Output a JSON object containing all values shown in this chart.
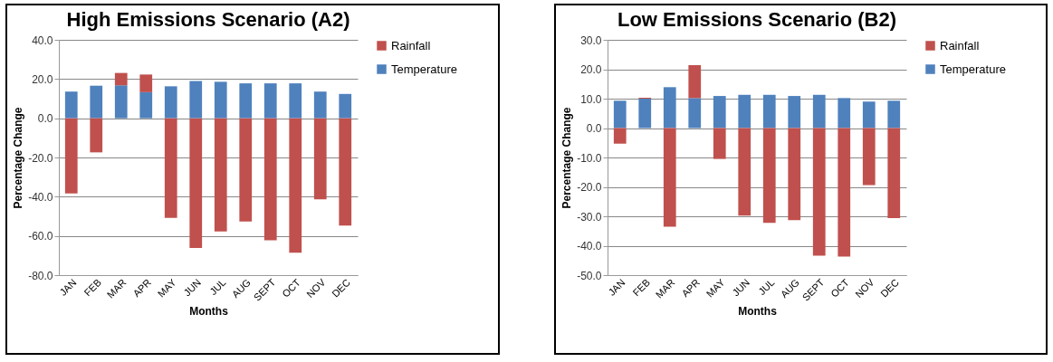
{
  "chart_data": [
    {
      "type": "bar",
      "title": "High Emissions Scenario (A2)",
      "xlabel": "Months",
      "ylabel": "Percentage Change",
      "stacked": true,
      "legend": "right",
      "grid": "y",
      "categories": [
        "JAN",
        "FEB",
        "MAR",
        "APR",
        "MAY",
        "JUN",
        "JUL",
        "AUG",
        "SEPT",
        "OCT",
        "NOV",
        "DEC"
      ],
      "ylim": [
        -80,
        40
      ],
      "yticks": [
        {
          "value": -80,
          "label": "-80.0"
        },
        {
          "value": -60,
          "label": "-60.0"
        },
        {
          "value": -40,
          "label": "-40.0"
        },
        {
          "value": -20,
          "label": "-20.0"
        },
        {
          "value": 0,
          "label": "0.0"
        },
        {
          "value": 20,
          "label": "20.0"
        },
        {
          "value": 40,
          "label": "40.0"
        }
      ],
      "series": [
        {
          "name": "Temperature",
          "color": "#4f81bd",
          "values": [
            13.6,
            16.6,
            16.8,
            13.3,
            16.3,
            19.0,
            18.6,
            17.8,
            17.8,
            17.8,
            13.6,
            12.4
          ]
        },
        {
          "name": "Rainfall",
          "color": "#c0504d",
          "values": [
            -38.4,
            -17.4,
            6.3,
            9.0,
            -50.8,
            -66.1,
            -57.7,
            -52.7,
            -62.2,
            -68.6,
            -41.3,
            -54.7
          ]
        }
      ]
    },
    {
      "type": "bar",
      "title": "Low Emissions Scenario (B2)",
      "xlabel": "Months",
      "ylabel": "Percentage Change",
      "stacked": true,
      "legend": "right",
      "grid": "y",
      "categories": [
        "JAN",
        "FEB",
        "MAR",
        "APR",
        "MAY",
        "JUN",
        "JUL",
        "AUG",
        "SEPT",
        "OCT",
        "NOV",
        "DEC"
      ],
      "ylim": [
        -50,
        30
      ],
      "yticks": [
        {
          "value": -50,
          "label": "-50.0"
        },
        {
          "value": -40,
          "label": "-40.0"
        },
        {
          "value": -30,
          "label": "-30.0"
        },
        {
          "value": -20,
          "label": "-20.0"
        },
        {
          "value": -10,
          "label": "-10.0"
        },
        {
          "value": 0,
          "label": "0.0"
        },
        {
          "value": 10,
          "label": "10.0"
        },
        {
          "value": 20,
          "label": "20.0"
        },
        {
          "value": 30,
          "label": "30.0"
        }
      ],
      "series": [
        {
          "name": "Temperature",
          "color": "#4f81bd",
          "values": [
            9.3,
            10.0,
            13.9,
            10.2,
            10.9,
            11.3,
            11.3,
            10.9,
            11.3,
            10.2,
            9.0,
            9.3
          ]
        },
        {
          "name": "Rainfall",
          "color": "#c0504d",
          "values": [
            -5.3,
            0.3,
            -33.5,
            11.2,
            -10.5,
            -29.8,
            -32.2,
            -31.3,
            -43.4,
            -43.7,
            -19.4,
            -30.6
          ]
        }
      ]
    }
  ]
}
